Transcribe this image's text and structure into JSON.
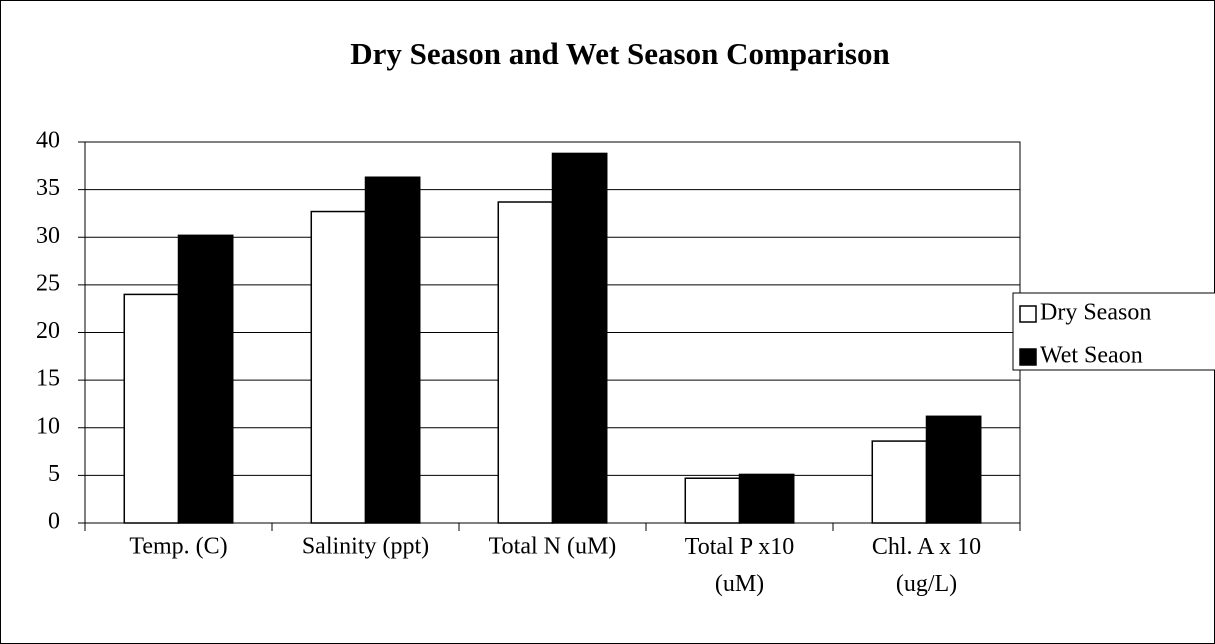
{
  "chart_data": {
    "type": "bar",
    "title": "Dry Season and Wet Season Comparison",
    "categories": [
      "Temp. (C)",
      "Salinity (ppt)",
      "Total N (uM)",
      "Total P x10\n(uM)",
      "Chl. A x 10\n(ug/L)"
    ],
    "series": [
      {
        "name": "Dry Season",
        "color": "#ffffff",
        "values": [
          24,
          32.7,
          33.7,
          4.7,
          8.6
        ]
      },
      {
        "name": "Wet Seaon",
        "color": "#000000",
        "values": [
          30.2,
          36.3,
          38.8,
          5.1,
          11.2
        ]
      }
    ],
    "ylim": [
      0,
      40
    ],
    "yticks": [
      0,
      5,
      10,
      15,
      20,
      25,
      30,
      35,
      40
    ],
    "grid": true,
    "legend": "right"
  }
}
